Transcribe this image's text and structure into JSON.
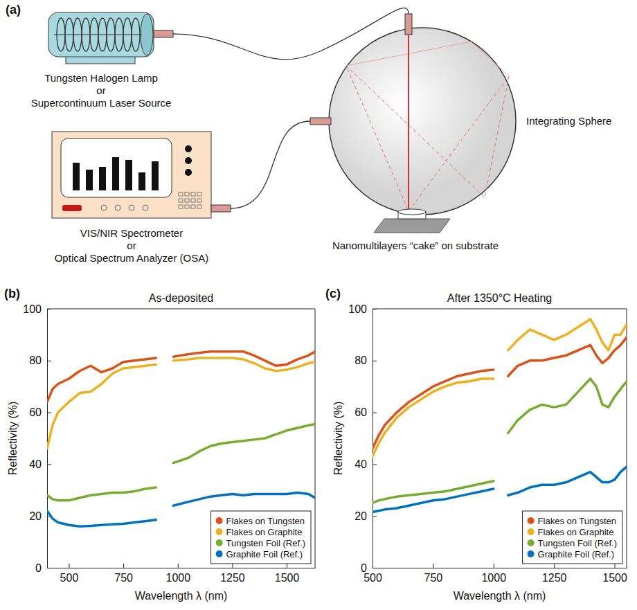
{
  "diagram": {
    "panel": "(a)",
    "source": {
      "lines": [
        "Tungsten Halogen Lamp",
        "or",
        "Supercontinuum Laser Source"
      ]
    },
    "detector": {
      "lines": [
        "VIS/NIR Spectrometer",
        "or",
        "Optical Spectrum Analyzer (OSA)"
      ]
    },
    "sphere": {
      "label": "Integrating Sphere"
    },
    "sample": {
      "label": "Nanomultilayers “cake” on substrate"
    }
  },
  "chart_data": [
    {
      "type": "line",
      "panel": "(b)",
      "title": "As-deposited",
      "xlabel": "Wavelength λ (nm)",
      "ylabel": "Reflectivity (%)",
      "x": [
        400,
        425,
        450,
        500,
        550,
        600,
        650,
        700,
        750,
        800,
        850,
        900,
        940,
        980,
        1050,
        1100,
        1150,
        1200,
        1250,
        1300,
        1350,
        1400,
        1450,
        1500,
        1550,
        1600,
        1630
      ],
      "xlim": [
        400,
        1630
      ],
      "xticks": [
        500,
        750,
        1000,
        1250,
        1500
      ],
      "ylim": [
        0,
        100
      ],
      "yticks": [
        0,
        20,
        40,
        60,
        80,
        100
      ],
      "legend": "lower right",
      "series": [
        {
          "name": "Flakes on Tungsten",
          "color": "#d95319",
          "values": [
            64,
            69,
            71,
            73,
            76,
            78,
            75.5,
            77,
            79.5,
            80,
            80.5,
            81,
            null,
            81.5,
            82.5,
            83,
            83.5,
            83.5,
            83.5,
            83.5,
            82,
            80,
            78,
            78.5,
            80.5,
            82,
            83.5
          ]
        },
        {
          "name": "Flakes on Graphite",
          "color": "#edb120",
          "values": [
            46,
            55,
            60,
            64,
            67.5,
            68,
            71,
            75,
            77,
            77.5,
            78,
            78.5,
            null,
            80,
            80.5,
            81,
            81,
            81,
            81,
            80.5,
            79,
            77,
            76,
            76.5,
            77.5,
            79,
            79.5
          ]
        },
        {
          "name": "Tungsten Foil (Ref.)",
          "color": "#77ac30",
          "values": [
            28,
            26.5,
            26,
            26,
            27,
            28,
            28.5,
            29,
            29,
            29.5,
            30.5,
            31,
            null,
            40.5,
            42.5,
            45,
            47,
            48,
            48.5,
            49,
            49.5,
            50,
            51.5,
            53,
            54,
            55,
            55.5
          ]
        },
        {
          "name": "Graphite Foil (Ref.)",
          "color": "#0072bd",
          "values": [
            22,
            19,
            17.5,
            16.5,
            16,
            16.2,
            16.5,
            16.8,
            17,
            17.5,
            18,
            18.5,
            null,
            24,
            25.5,
            26.5,
            27.5,
            28,
            28.5,
            28,
            28.5,
            28.5,
            28.5,
            28.5,
            29,
            28.5,
            27
          ]
        }
      ]
    },
    {
      "type": "line",
      "panel": "(c)",
      "title": "After 1350°C Heating",
      "xlabel": "Wavelength λ (nm)",
      "ylabel": "Reflectivity (%)",
      "x": [
        500,
        525,
        550,
        600,
        650,
        700,
        750,
        800,
        850,
        900,
        950,
        1000,
        1030,
        1060,
        1100,
        1150,
        1200,
        1250,
        1300,
        1350,
        1400,
        1425,
        1450,
        1475,
        1500,
        1525,
        1550
      ],
      "xlim": [
        500,
        1550
      ],
      "xticks": [
        500,
        750,
        1000,
        1250,
        1500
      ],
      "ylim": [
        0,
        100
      ],
      "yticks": [
        0,
        20,
        40,
        60,
        80,
        100
      ],
      "legend": "lower right",
      "series": [
        {
          "name": "Flakes on Tungsten",
          "color": "#d95319",
          "values": [
            46,
            51,
            55,
            60,
            64,
            67,
            70,
            72,
            74,
            75,
            76,
            76.5,
            null,
            74,
            78,
            80,
            80,
            81,
            82,
            84,
            86,
            82,
            79,
            81,
            84,
            86,
            89
          ]
        },
        {
          "name": "Flakes on Graphite",
          "color": "#edb120",
          "values": [
            43,
            48,
            52,
            58,
            62,
            65,
            68,
            70,
            71.5,
            72,
            73,
            73,
            null,
            84,
            88,
            92,
            90,
            88,
            90,
            93,
            96,
            92,
            87,
            84,
            90,
            90,
            94
          ]
        },
        {
          "name": "Tungsten Foil (Ref.)",
          "color": "#77ac30",
          "values": [
            25,
            26,
            26.5,
            27.5,
            28,
            28.5,
            29,
            29.5,
            30.5,
            31.5,
            32.5,
            33.5,
            null,
            52,
            57,
            61,
            63,
            62,
            63,
            68,
            73,
            70,
            63,
            62,
            66,
            69,
            72
          ]
        },
        {
          "name": "Graphite Foil (Ref.)",
          "color": "#0072bd",
          "values": [
            21.5,
            22,
            22.5,
            23,
            24,
            25,
            26,
            26.5,
            27.5,
            28.5,
            29.5,
            30.5,
            null,
            28,
            29,
            31,
            32,
            32,
            33,
            35,
            37,
            35,
            33,
            33,
            34,
            37,
            39
          ]
        }
      ]
    }
  ]
}
